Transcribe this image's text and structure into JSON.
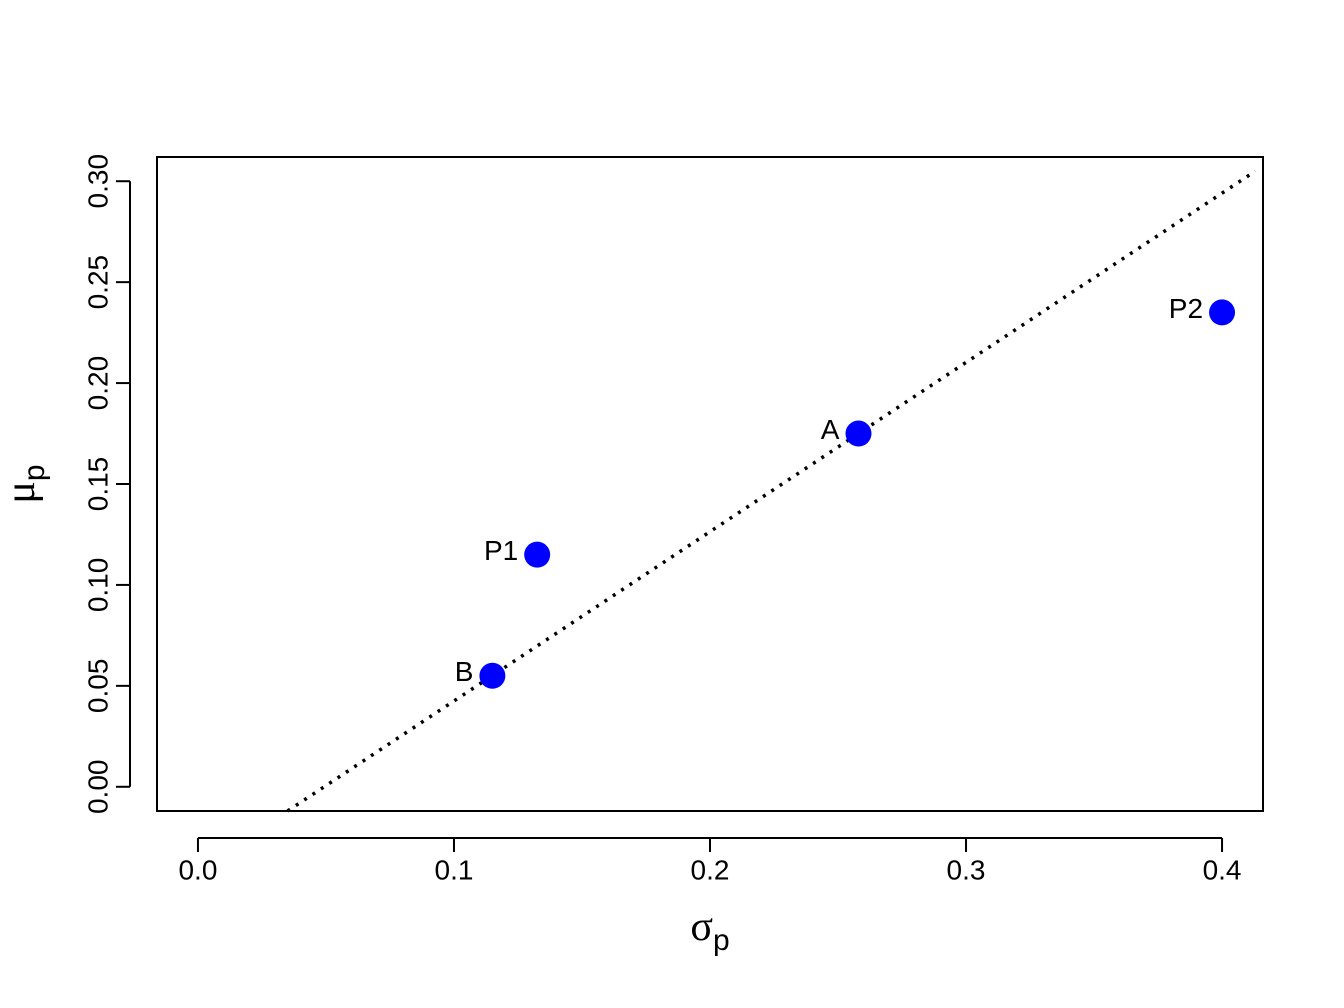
{
  "chart_data": {
    "type": "scatter",
    "xlabel": {
      "symbol": "σ",
      "sub": "p"
    },
    "ylabel": {
      "symbol": "μ",
      "sub": "p"
    },
    "xlim": [
      -0.016,
      0.416
    ],
    "ylim": [
      -0.012,
      0.312
    ],
    "xticks": [
      {
        "value": 0,
        "label": "0.0"
      },
      0.1,
      0.2,
      0.3,
      0.4
    ],
    "yticks": [
      {
        "value": 0,
        "label": "0.00"
      },
      0.05,
      {
        "value": 0.1,
        "label": "0.10"
      },
      0.15,
      {
        "value": 0.2,
        "label": "0.20"
      },
      0.25,
      {
        "value": 0.3,
        "label": "0.30"
      }
    ],
    "series": [
      {
        "color": "#0000ff",
        "labels": [
          "B",
          "P1",
          "A",
          "P2"
        ],
        "x": [
          0.115,
          0.1325,
          0.258,
          0.4
        ],
        "values": [
          0.055,
          0.115,
          0.175,
          0.235
        ]
      }
    ],
    "line": {
      "color": "#000000",
      "x": [
        0.035,
        0.413
      ],
      "values": [
        -0.012,
        0.305
      ]
    }
  }
}
